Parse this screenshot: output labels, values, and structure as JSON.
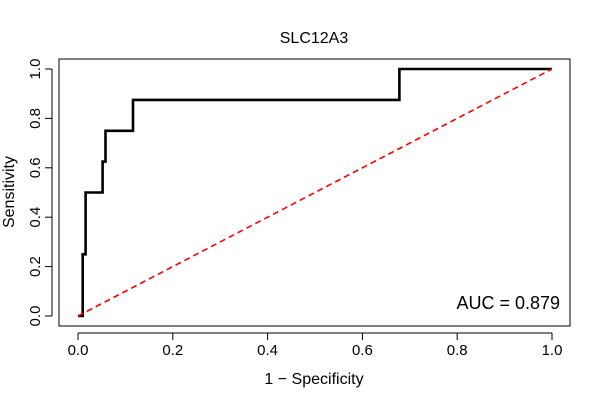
{
  "chart_data": {
    "type": "line",
    "title": "SLC12A3",
    "xlabel": "1 − Specificity",
    "ylabel": "Sensitivity",
    "xlim": [
      0,
      1
    ],
    "ylim": [
      0,
      1
    ],
    "xticks": [
      0.0,
      0.2,
      0.4,
      0.6,
      0.8,
      1.0
    ],
    "xtick_labels": [
      "0.0",
      "0.2",
      "0.4",
      "0.6",
      "0.8",
      "1.0"
    ],
    "yticks": [
      0.0,
      0.2,
      0.4,
      0.6,
      0.8,
      1.0
    ],
    "ytick_labels": [
      "0.0",
      "0.2",
      "0.4",
      "0.6",
      "0.8",
      "1.0"
    ],
    "grid": false,
    "series": [
      {
        "name": "ROC curve",
        "color": "#000000",
        "style": "solid",
        "x": [
          0.0,
          0.01,
          0.01,
          0.016,
          0.016,
          0.022,
          0.022,
          0.052,
          0.052,
          0.058,
          0.058,
          0.116,
          0.116,
          0.678,
          0.678,
          1.0
        ],
        "y": [
          0.0,
          0.0,
          0.25,
          0.25,
          0.5,
          0.5,
          0.5,
          0.5,
          0.625,
          0.625,
          0.75,
          0.75,
          0.875,
          0.875,
          1.0,
          1.0
        ]
      },
      {
        "name": "Reference",
        "color": "#ff0000",
        "style": "dashed",
        "x": [
          0,
          1
        ],
        "y": [
          0,
          1
        ]
      }
    ],
    "annotations": [
      {
        "text": "AUC = 0.879",
        "position": "bottom-right"
      }
    ]
  }
}
